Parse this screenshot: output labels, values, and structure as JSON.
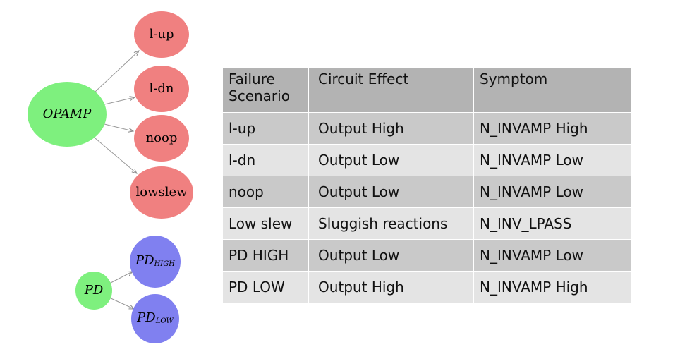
{
  "diagram": {
    "nodes": [
      {
        "label": "OPAMP"
      },
      {
        "label": "l-up"
      },
      {
        "label": "l-dn"
      },
      {
        "label": "noop"
      },
      {
        "label": "lowslew"
      },
      {
        "label": "PD"
      },
      {
        "label": "PD",
        "subscript": "HIGH"
      },
      {
        "label": "PD",
        "subscript": "LOW"
      }
    ]
  },
  "table": {
    "header": [
      "Failure Scenario",
      "Circuit Effect",
      "Symptom"
    ],
    "rows": [
      [
        "l-up",
        "Output High",
        "N_INVAMP High"
      ],
      [
        "l-dn",
        "Output Low",
        "N_INVAMP Low"
      ],
      [
        "noop",
        "Output Low",
        "N_INVAMP Low"
      ],
      [
        "Low slew",
        "Sluggish reactions",
        "N_INV_LPASS"
      ],
      [
        "PD HIGH",
        "Output Low",
        "N_INVAMP Low"
      ],
      [
        "PD LOW",
        "Output High",
        "N_INVAMP High"
      ]
    ]
  }
}
